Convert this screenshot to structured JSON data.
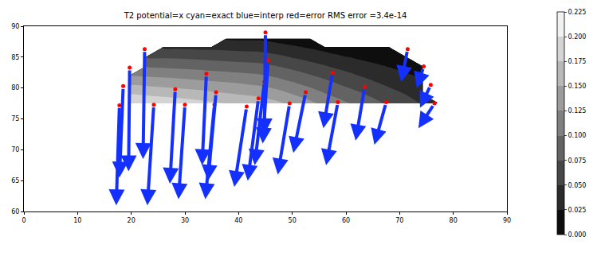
{
  "chart_data": {
    "type": "contour_quiver",
    "title": "T2 potential=x cyan=exact blue=interp red=error RMS error =3.4e-14",
    "xlim": [
      0,
      90
    ],
    "xticks": [
      0,
      10,
      20,
      30,
      40,
      50,
      60,
      70,
      80,
      90
    ],
    "ylim": [
      60,
      90
    ],
    "yticks": [
      60,
      65,
      70,
      75,
      80,
      85,
      90
    ],
    "grid": false,
    "contour": {
      "color": "gray",
      "x": [
        17,
        20,
        23,
        26,
        29,
        32,
        35,
        38,
        41,
        44,
        47,
        50,
        53,
        56,
        59,
        62,
        65,
        68,
        71,
        74,
        77
      ],
      "y": [
        77.5,
        79,
        80.5,
        82,
        83.5,
        85,
        86.5,
        88
      ],
      "z": [
        [
          null,
          0.2,
          0.196,
          0.192,
          0.188,
          0.184,
          0.179,
          0.174,
          0.169,
          0.164,
          0.156,
          0.144,
          0.132,
          0.119,
          0.107,
          0.095,
          0.083,
          0.071,
          0.06,
          0.049,
          0.039
        ],
        [
          null,
          0.175,
          0.171,
          0.168,
          0.165,
          0.161,
          0.156,
          0.152,
          0.148,
          0.144,
          0.136,
          0.125,
          0.114,
          0.102,
          0.091,
          0.08,
          0.07,
          0.059,
          0.05,
          0.04,
          null
        ],
        [
          null,
          0.15,
          0.147,
          0.144,
          0.141,
          0.138,
          0.134,
          0.131,
          0.127,
          0.123,
          0.116,
          0.106,
          0.096,
          0.086,
          0.075,
          0.066,
          0.056,
          0.047,
          0.039,
          0.031,
          null
        ],
        [
          null,
          0.125,
          0.122,
          0.12,
          0.118,
          0.115,
          0.112,
          0.109,
          0.106,
          0.103,
          0.096,
          0.087,
          0.078,
          0.069,
          0.06,
          0.051,
          0.043,
          0.036,
          0.029,
          0.022,
          null
        ],
        [
          null,
          null,
          0.098,
          0.096,
          0.094,
          0.092,
          0.089,
          0.087,
          0.085,
          0.082,
          0.076,
          0.068,
          0.06,
          0.052,
          0.044,
          0.037,
          0.03,
          0.024,
          0.018,
          0.013,
          null
        ],
        [
          null,
          null,
          0.073,
          0.072,
          0.071,
          0.069,
          0.067,
          0.065,
          0.063,
          0.062,
          0.056,
          0.049,
          0.042,
          0.035,
          0.028,
          0.022,
          0.017,
          0.012,
          0.008,
          null,
          null
        ],
        [
          null,
          null,
          null,
          0.048,
          0.047,
          0.046,
          0.045,
          0.044,
          0.042,
          0.041,
          0.036,
          0.03,
          0.024,
          0.018,
          0.012,
          0.008,
          0.004,
          0.0,
          null,
          null,
          null
        ],
        [
          null,
          null,
          null,
          null,
          null,
          null,
          null,
          0.022,
          0.021,
          0.021,
          0.016,
          0.011,
          0.006,
          null,
          null,
          null,
          null,
          null,
          null,
          null,
          null
        ]
      ],
      "colorbar": {
        "range": [
          0,
          0.225
        ],
        "ticks": [
          {
            "value": 0,
            "label": "0.000"
          },
          {
            "value": 0.025,
            "label": "0.025"
          },
          {
            "value": 0.05,
            "label": "0.050"
          },
          {
            "value": 0.075,
            "label": "0.075"
          },
          {
            "value": 0.1,
            "label": "0.100"
          },
          {
            "value": 0.125,
            "label": "0.125"
          },
          {
            "value": 0.15,
            "label": "0.150"
          },
          {
            "value": 0.175,
            "label": "0.175"
          },
          {
            "value": 0.2,
            "label": "0.200"
          },
          {
            "value": 0.225,
            "label": "0.225"
          }
        ]
      }
    },
    "series": [
      {
        "type": "quiver",
        "color": "#1430ff",
        "x": [
          17.8,
          18.5,
          19.7,
          22.5,
          24.2,
          28.2,
          30,
          34,
          35.8,
          35.5,
          41.5,
          43.7,
          44.8,
          45.5,
          45,
          49.5,
          52.5,
          57.5,
          58.5,
          63.5,
          67.5,
          71.5,
          74.5,
          75.8,
          76.5
        ],
        "y": [
          77.2,
          80.3,
          83.3,
          86.3,
          77.3,
          79.8,
          77.3,
          82.3,
          79.3,
          77.3,
          77,
          78.3,
          81,
          84.5,
          89,
          77.5,
          79.3,
          82.5,
          77.7,
          80.2,
          77.7,
          86.3,
          83.5,
          80.5,
          77.5
        ],
        "u": [
          -0.6,
          -0.7,
          -0.2,
          -0.3,
          -1.2,
          -1.0,
          -1.2,
          -0.8,
          -1.5,
          -1.7,
          -2.3,
          -2.0,
          -1.8,
          -1.0,
          -0.2,
          -2.2,
          -2.3,
          -1.7,
          -2.2,
          -1.7,
          -2.2,
          -1.2,
          -1.3,
          -2.0,
          -3.0
        ],
        "v": [
          -16.2,
          -14.8,
          -16.8,
          -17.8,
          -16.3,
          -15.3,
          -15.3,
          -14.8,
          -14.3,
          -15.3,
          -13.0,
          -13.3,
          -13.5,
          -13.5,
          -16.5,
          -11.5,
          -9.8,
          -9.0,
          -10.2,
          -8.7,
          -6.9,
          -5.3,
          -3.5,
          -3.7,
          -4.0
        ]
      },
      {
        "type": "scatter",
        "color": "red",
        "marker": "circle",
        "x": [
          17.8,
          18.5,
          19.7,
          22.5,
          24.2,
          28.2,
          30,
          34,
          35.8,
          35.5,
          41.5,
          43.7,
          44.8,
          45.5,
          45,
          49.5,
          52.5,
          57.5,
          58.5,
          63.5,
          67.5,
          71.5,
          74.5,
          75.8,
          76.5
        ],
        "y": [
          77.2,
          80.3,
          83.3,
          86.3,
          77.3,
          79.8,
          77.3,
          82.3,
          79.3,
          77.3,
          77,
          78.3,
          81,
          84.5,
          89,
          77.5,
          79.3,
          82.5,
          77.7,
          80.2,
          77.7,
          86.3,
          83.5,
          80.5,
          77.5
        ]
      }
    ]
  }
}
